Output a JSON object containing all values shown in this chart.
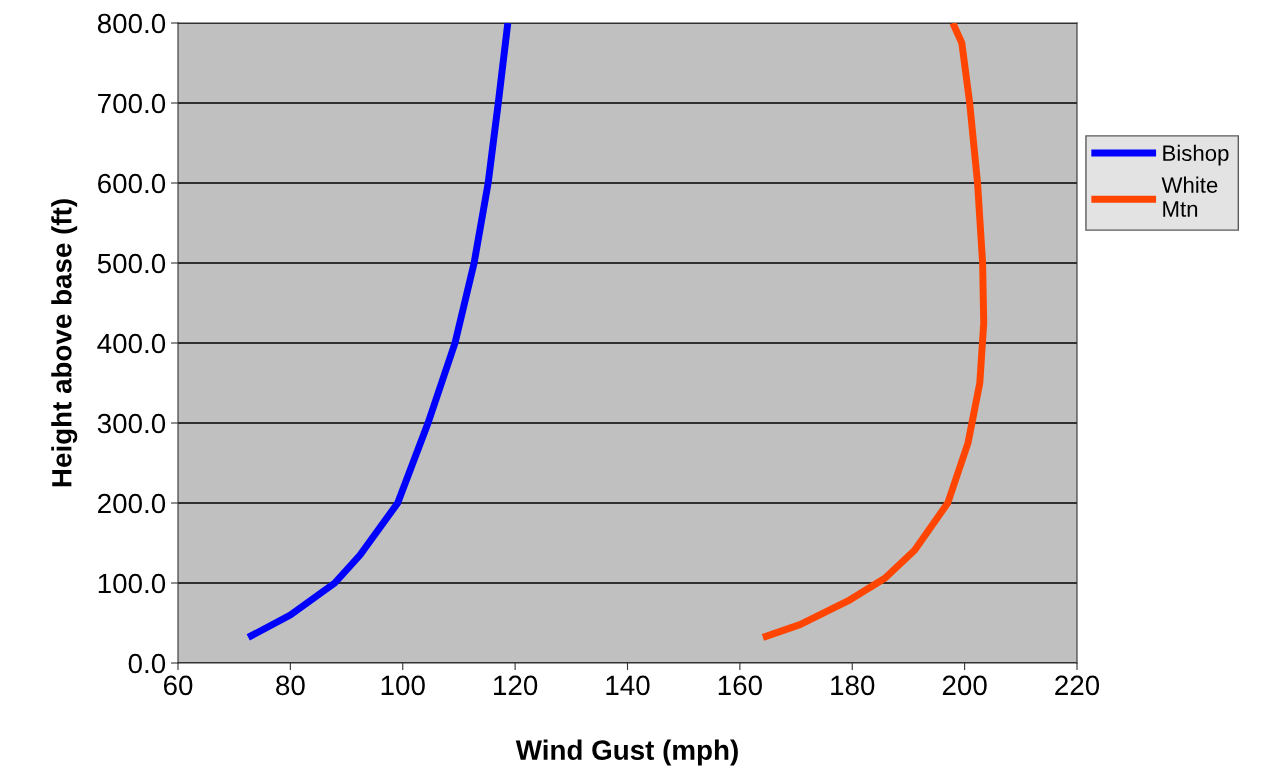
{
  "chart_data": {
    "type": "line",
    "xlabel": "Wind Gust (mph)",
    "ylabel": "Height above base (ft)",
    "xlim": [
      60,
      220
    ],
    "xticks": [
      60,
      80,
      100,
      120,
      140,
      160,
      180,
      200,
      220
    ],
    "ylim": [
      0,
      800
    ],
    "yticks": [
      {
        "value": 0,
        "label": "0.0"
      },
      {
        "value": 100,
        "label": "100.0"
      },
      {
        "value": 200,
        "label": "200.0"
      },
      {
        "value": 300,
        "label": "300.0"
      },
      {
        "value": 400,
        "label": "400.0"
      },
      {
        "value": 500,
        "label": "500.0"
      },
      {
        "value": 600,
        "label": "600.0"
      },
      {
        "value": 700,
        "label": "700.0"
      },
      {
        "value": 800,
        "label": "800.0"
      }
    ],
    "grid": "y",
    "legend": "right",
    "marker": "none",
    "line_style": "solid",
    "series": [
      {
        "name": "Bishop",
        "color": "#0000ff",
        "x": [
          72.5,
          80,
          87.9,
          92.4,
          99.1,
          104.5,
          109.3,
          112.7,
          115.2,
          117,
          118.7
        ],
        "values": [
          32,
          60,
          100,
          135,
          200,
          300,
          400,
          500,
          600,
          700,
          800
        ]
      },
      {
        "name": "White Mtn",
        "color": "#ff4500",
        "x": [
          164.1,
          170.7,
          179.6,
          185.8,
          191.1,
          197,
          200.6,
          202.7,
          203.4,
          203.2,
          202.3,
          200.9,
          199.5,
          197.9
        ],
        "values": [
          32,
          48,
          79,
          106,
          141,
          200,
          275,
          350,
          425,
          500,
          600,
          700,
          775,
          800
        ]
      }
    ]
  }
}
